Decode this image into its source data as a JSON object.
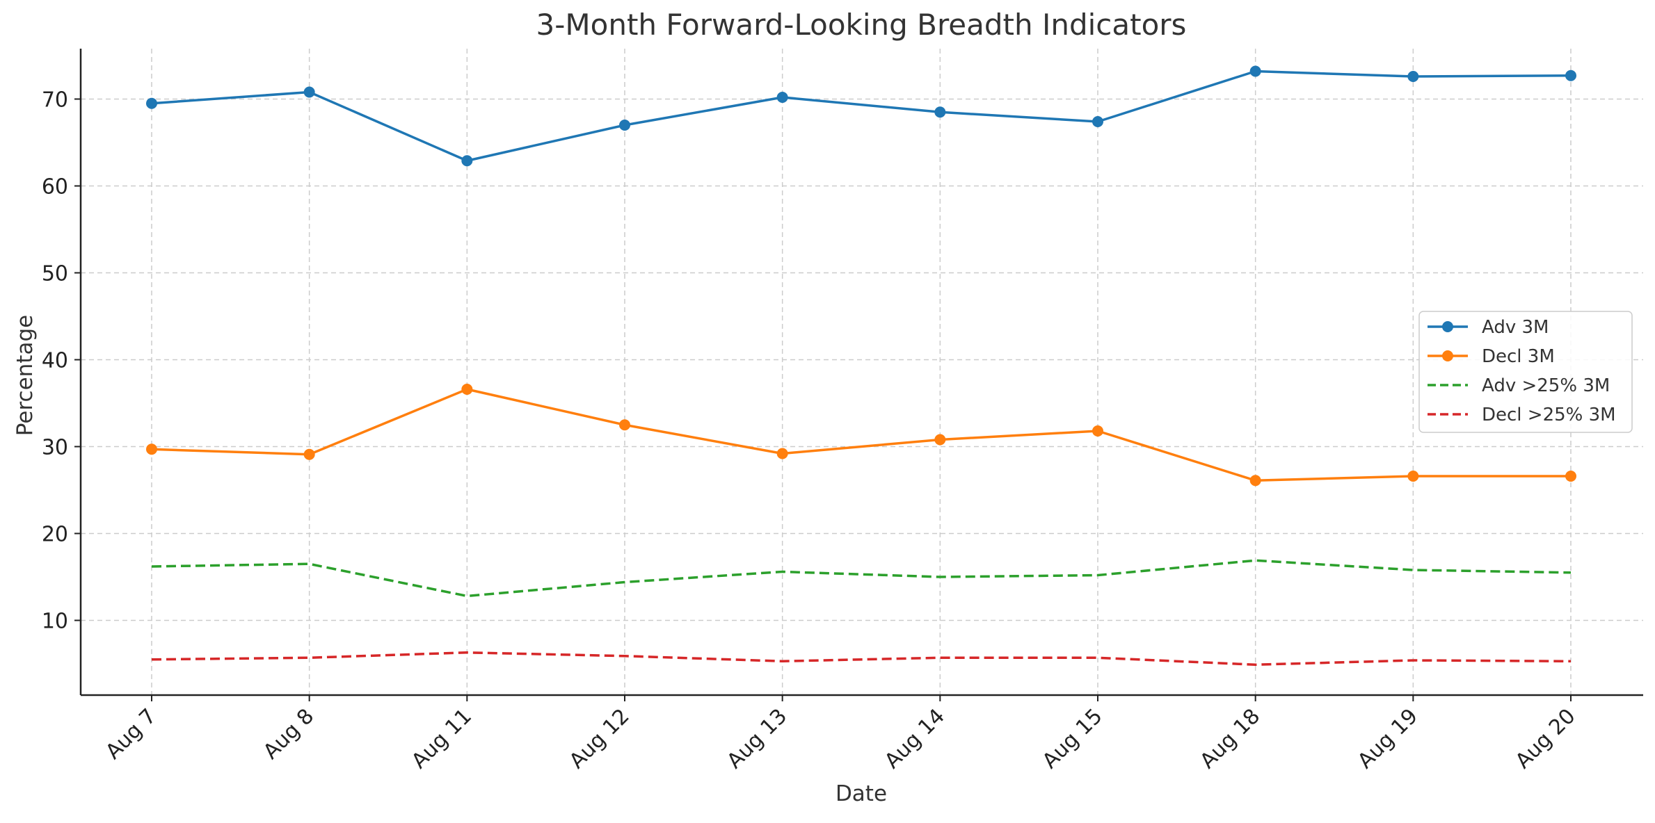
{
  "chart_data": {
    "type": "line",
    "title": "3-Month Forward-Looking Breadth Indicators",
    "xlabel": "Date",
    "ylabel": "Percentage",
    "categories": [
      "Aug 7",
      "Aug 8",
      "Aug 11",
      "Aug 12",
      "Aug 13",
      "Aug 14",
      "Aug 15",
      "Aug 18",
      "Aug 19",
      "Aug 20"
    ],
    "ylim": [
      1.4,
      75.8
    ],
    "yticks": [
      10,
      20,
      30,
      40,
      50,
      60,
      70
    ],
    "grid": true,
    "legend_position": "center-right",
    "series": [
      {
        "name": "Adv 3M",
        "color": "#1f77b4",
        "line_style": "solid",
        "marker": "circle",
        "values": [
          69.5,
          70.8,
          62.9,
          67.0,
          70.2,
          68.5,
          67.4,
          73.2,
          72.6,
          72.7
        ]
      },
      {
        "name": "Decl 3M",
        "color": "#ff7f0e",
        "line_style": "solid",
        "marker": "circle",
        "values": [
          29.7,
          29.1,
          36.6,
          32.5,
          29.2,
          30.8,
          31.8,
          26.1,
          26.6,
          26.6
        ]
      },
      {
        "name": "Adv >25% 3M",
        "color": "#2ca02c",
        "line_style": "dashed",
        "marker": "none",
        "values": [
          16.2,
          16.5,
          12.8,
          14.4,
          15.6,
          15.0,
          15.2,
          16.9,
          15.8,
          15.5
        ]
      },
      {
        "name": "Decl >25% 3M",
        "color": "#d62728",
        "line_style": "dashed",
        "marker": "none",
        "values": [
          5.5,
          5.7,
          6.3,
          5.9,
          5.3,
          5.7,
          5.7,
          4.9,
          5.4,
          5.3
        ]
      }
    ]
  }
}
